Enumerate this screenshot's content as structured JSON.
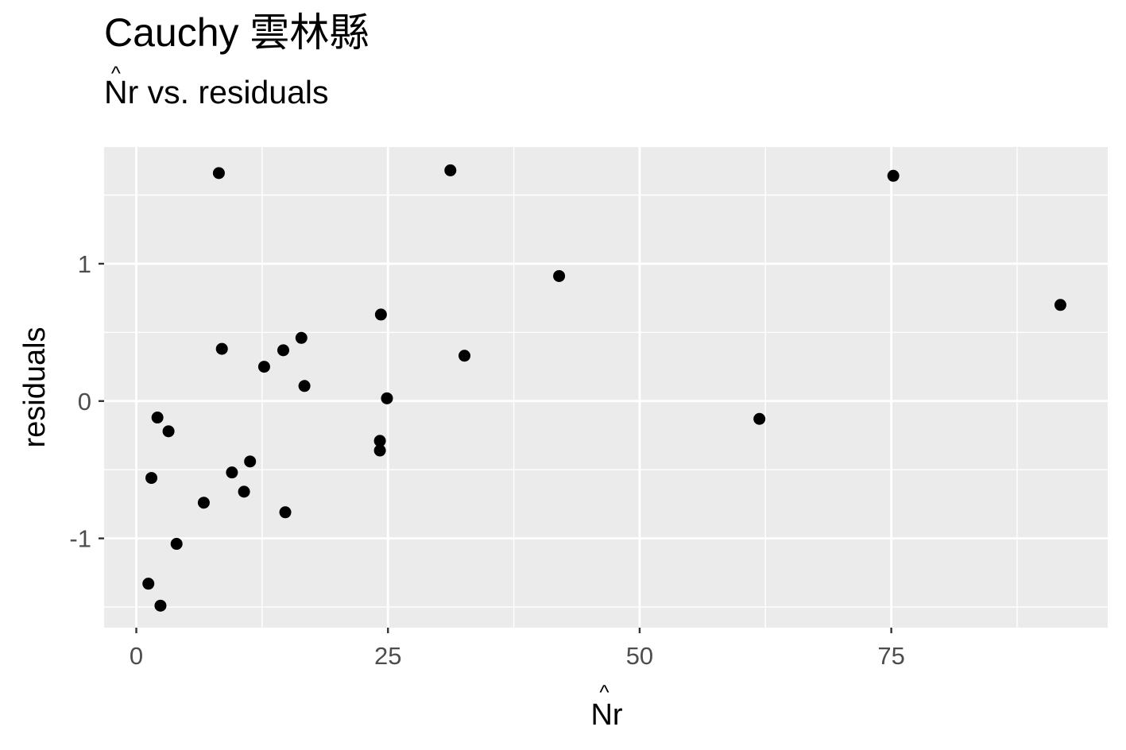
{
  "title": "Cauchy 雲林縣",
  "subtitle": {
    "hat_char": "^",
    "base": "N",
    "rest": "r vs. residuals"
  },
  "chart_data": {
    "type": "scatter",
    "title": "Cauchy 雲林縣",
    "subtitle": "N̂r vs. residuals",
    "xlabel": "N̂r",
    "ylabel": "residuals",
    "xlim": [
      -3.2,
      96.5
    ],
    "ylim": [
      -1.65,
      1.85
    ],
    "xticks": [
      0,
      25,
      50,
      75
    ],
    "xtick_labels": [
      "0",
      "25",
      "50",
      "75"
    ],
    "yticks": [
      -1,
      0,
      1
    ],
    "ytick_labels": [
      "-1",
      "0",
      "1"
    ],
    "grid": true,
    "background": "#ebebeb",
    "gridline_color": "#ffffff",
    "point_color": "#000000",
    "x": [
      8.2,
      31.2,
      75.2,
      42.0,
      91.8,
      24.3,
      8.5,
      14.6,
      16.4,
      12.7,
      32.6,
      16.7,
      24.9,
      61.9,
      2.1,
      3.2,
      24.2,
      24.2,
      11.3,
      9.5,
      1.5,
      10.7,
      6.7,
      14.8,
      4.0,
      1.2,
      2.4
    ],
    "y": [
      1.66,
      1.68,
      1.64,
      0.91,
      0.7,
      0.63,
      0.38,
      0.37,
      0.46,
      0.25,
      0.33,
      0.11,
      0.02,
      -0.13,
      -0.12,
      -0.22,
      -0.29,
      -0.36,
      -0.44,
      -0.52,
      -0.56,
      -0.66,
      -0.74,
      -0.81,
      -1.04,
      -1.33,
      -1.49
    ]
  },
  "xaxis": {
    "hat_char": "^",
    "base": "N",
    "rest": "r"
  },
  "yaxis": {
    "label": "residuals"
  }
}
